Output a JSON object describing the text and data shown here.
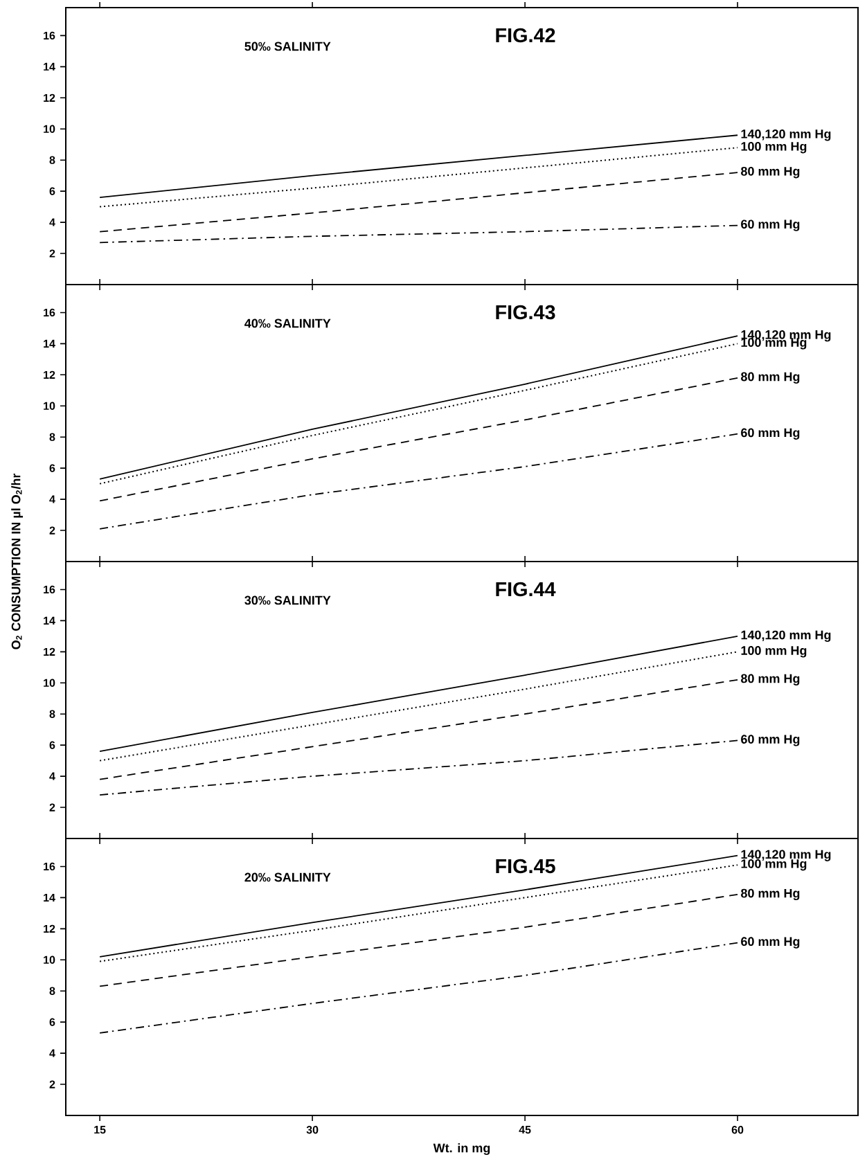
{
  "chart_data": [
    {
      "type": "line",
      "title": "FIG.42",
      "subtitle": "50‰ SALINITY",
      "x": [
        15,
        30,
        45,
        60
      ],
      "xlim": [
        12.6,
        68.5
      ],
      "ylim": [
        0,
        17.8
      ],
      "xticks": [
        15,
        30,
        45,
        60
      ],
      "yticks": [
        2,
        4,
        6,
        8,
        10,
        12,
        14,
        16
      ],
      "tick_labels": "y",
      "series": [
        {
          "name": "140,120 mm Hg",
          "color": "#000000",
          "line_style": "solid",
          "values": [
            5.6,
            7.0,
            8.3,
            9.6
          ]
        },
        {
          "name": "100 mm Hg",
          "color": "#000000",
          "line_style": "dotted",
          "values": [
            5.0,
            6.2,
            7.5,
            8.8
          ]
        },
        {
          "name": "80 mm Hg",
          "color": "#000000",
          "line_style": "dashed",
          "values": [
            3.4,
            4.6,
            5.9,
            7.2
          ]
        },
        {
          "name": "60 mm Hg",
          "color": "#000000",
          "line_style": "dashdot",
          "values": [
            2.7,
            3.1,
            3.4,
            3.8
          ]
        }
      ]
    },
    {
      "type": "line",
      "title": "FIG.43",
      "subtitle": "40‰ SALINITY",
      "ylabel": "O$_{2}$ CONSUMPTION IN µl O$_{2}$/hr",
      "x": [
        15,
        30,
        45,
        60
      ],
      "xlim": [
        12.6,
        68.5
      ],
      "ylim": [
        0,
        17.8
      ],
      "xticks": [
        15,
        30,
        45,
        60
      ],
      "yticks": [
        2,
        4,
        6,
        8,
        10,
        12,
        14,
        16
      ],
      "tick_labels": "y",
      "series": [
        {
          "name": "140,120 mm Hg",
          "color": "#000000",
          "line_style": "solid",
          "values": [
            5.3,
            8.5,
            11.4,
            14.5
          ]
        },
        {
          "name": "100 mm Hg",
          "color": "#000000",
          "line_style": "dotted",
          "values": [
            5.0,
            8.1,
            11.0,
            14.0
          ]
        },
        {
          "name": "80 mm Hg",
          "color": "#000000",
          "line_style": "dashed",
          "values": [
            3.9,
            6.6,
            9.1,
            11.8
          ]
        },
        {
          "name": "60 mm Hg",
          "color": "#000000",
          "line_style": "dashdot",
          "values": [
            2.1,
            4.3,
            6.1,
            8.2
          ]
        }
      ]
    },
    {
      "type": "line",
      "title": "FIG.44",
      "subtitle": "30‰ SALINITY",
      "x": [
        15,
        30,
        45,
        60
      ],
      "xlim": [
        12.6,
        68.5
      ],
      "ylim": [
        0,
        17.8
      ],
      "xticks": [
        15,
        30,
        45,
        60
      ],
      "yticks": [
        2,
        4,
        6,
        8,
        10,
        12,
        14,
        16
      ],
      "tick_labels": "y",
      "series": [
        {
          "name": "140,120 mm Hg",
          "color": "#000000",
          "line_style": "solid",
          "values": [
            5.6,
            8.1,
            10.5,
            13.0
          ]
        },
        {
          "name": "100 mm Hg",
          "color": "#000000",
          "line_style": "dotted",
          "values": [
            5.0,
            7.3,
            9.6,
            12.0
          ]
        },
        {
          "name": "80 mm Hg",
          "color": "#000000",
          "line_style": "dashed",
          "values": [
            3.8,
            5.9,
            8.0,
            10.2
          ]
        },
        {
          "name": "60 mm Hg",
          "color": "#000000",
          "line_style": "dashdot",
          "values": [
            2.8,
            4.0,
            5.0,
            6.3
          ]
        }
      ]
    },
    {
      "type": "line",
      "title": "FIG.45",
      "subtitle": "20‰ SALINITY",
      "xlabel": "Wt. in mg",
      "x": [
        15,
        30,
        45,
        60
      ],
      "xlim": [
        12.6,
        68.5
      ],
      "ylim": [
        0,
        17.8
      ],
      "xticks": [
        15,
        30,
        45,
        60
      ],
      "yticks": [
        2,
        4,
        6,
        8,
        10,
        12,
        14,
        16
      ],
      "series": [
        {
          "name": "140,120 mm Hg",
          "color": "#000000",
          "line_style": "solid",
          "values": [
            10.2,
            12.4,
            14.5,
            16.7
          ]
        },
        {
          "name": "100 mm Hg",
          "color": "#000000",
          "line_style": "dotted",
          "values": [
            9.9,
            11.9,
            14.0,
            16.1
          ]
        },
        {
          "name": "80 mm Hg",
          "color": "#000000",
          "line_style": "dashed",
          "values": [
            8.3,
            10.2,
            12.1,
            14.2
          ]
        },
        {
          "name": "60 mm Hg",
          "color": "#000000",
          "line_style": "dashdot",
          "values": [
            5.3,
            7.2,
            9.0,
            11.1
          ]
        }
      ]
    }
  ]
}
